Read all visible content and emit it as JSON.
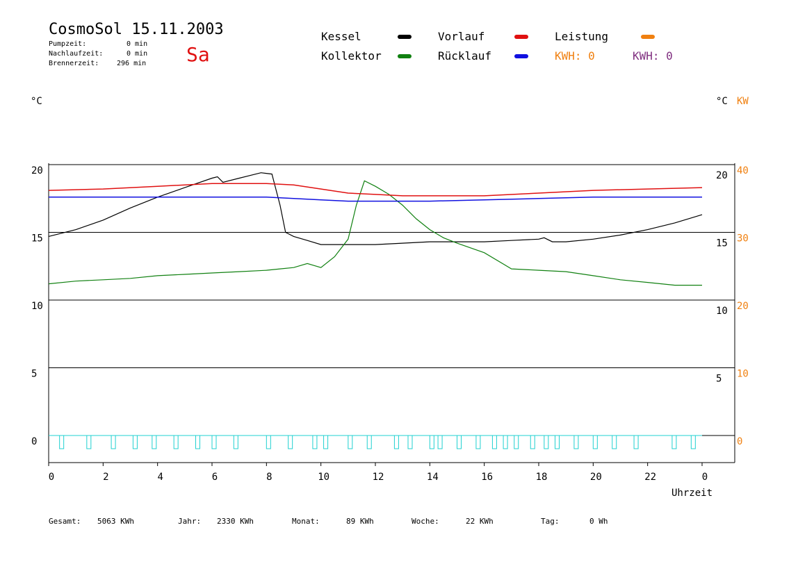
{
  "header": {
    "title": "CosmoSol 15.11.2003",
    "day": "Sa",
    "pump_label": "Pumpzeit:",
    "pump_value": "0 min",
    "nachlauf_label": "Nachlaufzeit:",
    "nachlauf_value": "0 min",
    "brenner_label": "Brennerzeit:",
    "brenner_value": "296 min"
  },
  "legend": {
    "kessel": "Kessel",
    "kollektor": "Kollektor",
    "vorlauf": "Vorlauf",
    "ruecklauf": "Rücklauf",
    "leistung": "Leistung",
    "kwh1": "KWH: 0",
    "kwh2": "KWH: 0",
    "colors": {
      "kessel": "#000000",
      "kollektor": "#108010",
      "vorlauf": "#e01010",
      "ruecklauf": "#1010e0",
      "leistung": "#f08010",
      "kwh2": "#803080",
      "pump": "#20d0d0"
    }
  },
  "axes": {
    "left_unit": "°C",
    "right_unit": "°C",
    "right_unit2": "KW",
    "xlabel": "Uhrzeit",
    "left_ticks": [
      "20",
      "15",
      "10",
      "5",
      "0"
    ],
    "right_ticks": [
      "20",
      "15",
      "10",
      "5"
    ],
    "right_kw_ticks": [
      "40",
      "30",
      "20",
      "10",
      "0"
    ],
    "x_ticks": [
      "0",
      "2",
      "4",
      "6",
      "8",
      "10",
      "12",
      "14",
      "16",
      "18",
      "20",
      "22",
      "0"
    ]
  },
  "footer": {
    "gesamt_label": "Gesamt:",
    "gesamt_value": "5063 KWh",
    "jahr_label": "Jahr:",
    "jahr_value": "2330 KWh",
    "monat_label": "Monat:",
    "monat_value": "89 KWh",
    "woche_label": "Woche:",
    "woche_value": "22 KWh",
    "tag_label": "Tag:",
    "tag_value": "0 Wh"
  },
  "chart_data": {
    "type": "line",
    "xlabel": "Uhrzeit",
    "ylabel": "°C",
    "xlim": [
      0,
      24
    ],
    "ylim": [
      -2,
      20
    ],
    "grid": true,
    "series": [
      {
        "name": "Kessel",
        "x": [
          0,
          1,
          2,
          3,
          4,
          5,
          6,
          6.2,
          6.4,
          7,
          7.8,
          8.2,
          8.5,
          8.7,
          9,
          9.5,
          10,
          11,
          12,
          13,
          14,
          15,
          16,
          17,
          18,
          18.2,
          18.5,
          19,
          20,
          21,
          22,
          23,
          24
        ],
        "y": [
          14.7,
          15.2,
          15.9,
          16.8,
          17.6,
          18.3,
          19.0,
          19.1,
          18.7,
          19.0,
          19.4,
          19.3,
          17.0,
          15.0,
          14.7,
          14.4,
          14.1,
          14.1,
          14.1,
          14.2,
          14.3,
          14.3,
          14.3,
          14.4,
          14.5,
          14.6,
          14.3,
          14.3,
          14.5,
          14.8,
          15.2,
          15.7,
          16.3
        ]
      },
      {
        "name": "Kollektor",
        "x": [
          0,
          1,
          2,
          3,
          4,
          5,
          6,
          7,
          8,
          8.5,
          9,
          9.5,
          10,
          10.5,
          11,
          11.3,
          11.6,
          12,
          12.5,
          13,
          13.5,
          14,
          14.5,
          15,
          16,
          17,
          18,
          19,
          20,
          21,
          22,
          23,
          24
        ],
        "y": [
          11.2,
          11.4,
          11.5,
          11.6,
          11.8,
          11.9,
          12.0,
          12.1,
          12.2,
          12.3,
          12.4,
          12.7,
          12.4,
          13.2,
          14.5,
          17.0,
          18.8,
          18.4,
          17.8,
          17.0,
          16.0,
          15.2,
          14.6,
          14.2,
          13.5,
          12.3,
          12.2,
          12.1,
          11.8,
          11.5,
          11.3,
          11.1,
          11.1
        ]
      },
      {
        "name": "Vorlauf",
        "x": [
          0,
          2,
          4,
          6,
          8,
          9,
          10,
          11,
          12,
          13,
          14,
          16,
          18,
          20,
          22,
          24
        ],
        "y": [
          18.1,
          18.2,
          18.4,
          18.6,
          18.6,
          18.5,
          18.2,
          17.9,
          17.8,
          17.7,
          17.7,
          17.7,
          17.9,
          18.1,
          18.2,
          18.3
        ]
      },
      {
        "name": "Rücklauf",
        "x": [
          0,
          2,
          4,
          6,
          8,
          9,
          10,
          11,
          12,
          13,
          14,
          16,
          18,
          20,
          22,
          24
        ],
        "y": [
          17.6,
          17.6,
          17.6,
          17.6,
          17.6,
          17.5,
          17.4,
          17.3,
          17.3,
          17.3,
          17.3,
          17.4,
          17.5,
          17.6,
          17.6,
          17.6
        ]
      }
    ],
    "pump_pulses": [
      0.4,
      1.4,
      2.3,
      3.1,
      3.8,
      4.6,
      5.4,
      6.0,
      6.8,
      8.0,
      8.8,
      9.7,
      10.1,
      11.0,
      11.7,
      12.7,
      13.2,
      14.0,
      14.3,
      15.0,
      15.7,
      16.3,
      16.7,
      17.1,
      17.7,
      18.2,
      18.6,
      19.3,
      20.0,
      20.7,
      21.5,
      22.9,
      23.6
    ]
  }
}
